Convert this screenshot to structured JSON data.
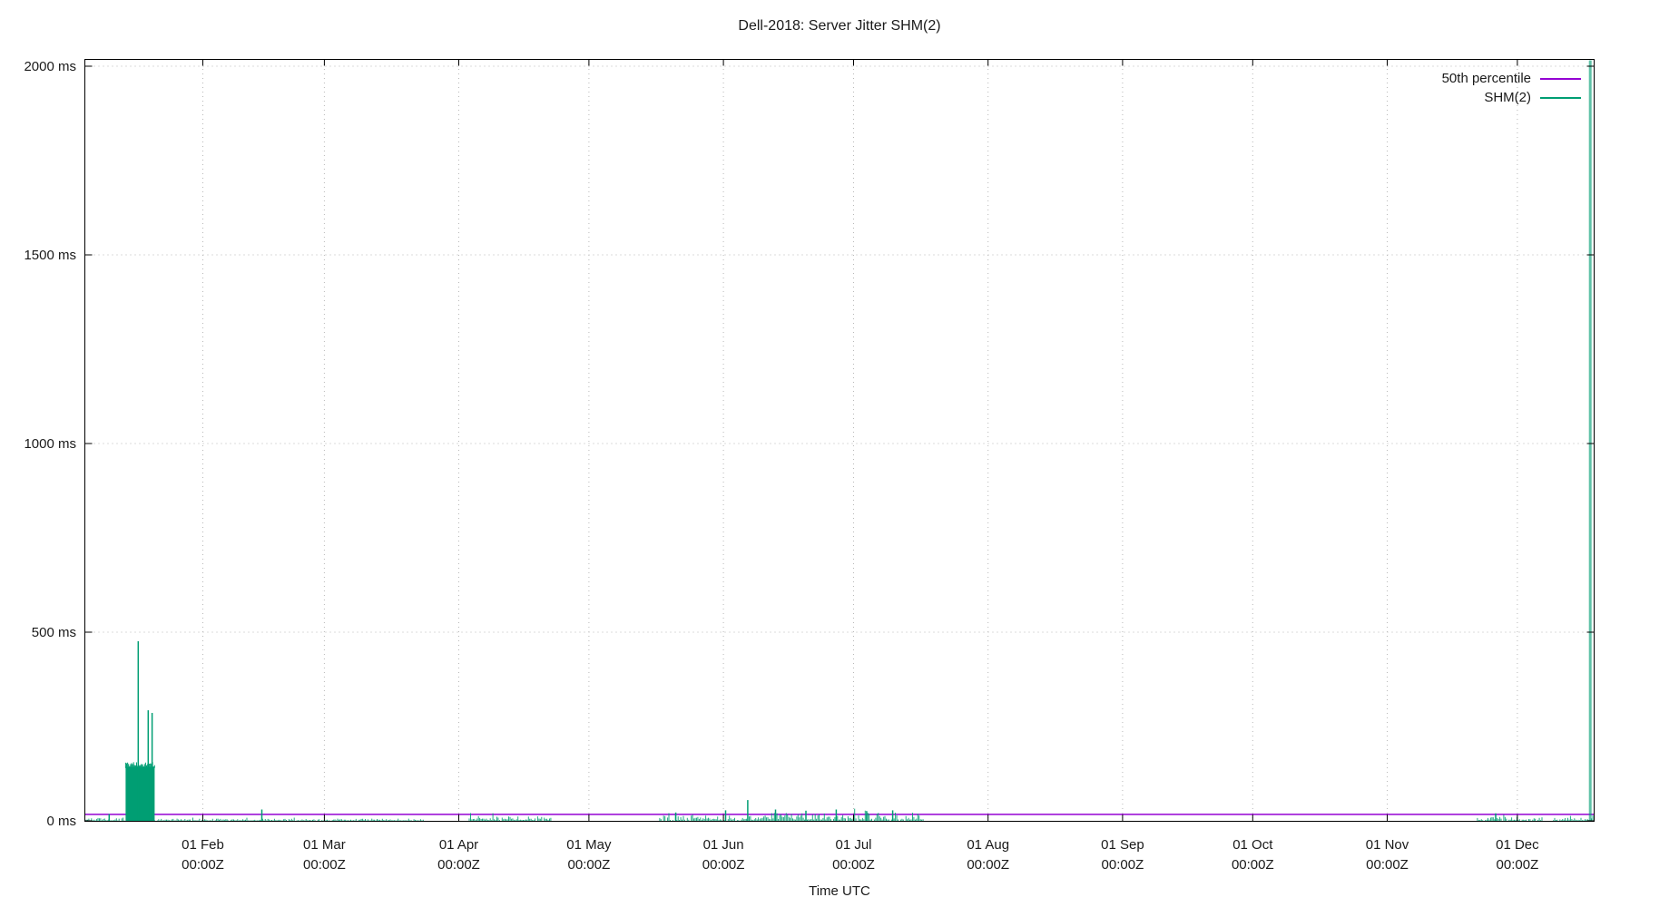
{
  "title": "Dell-2018: Server Jitter SHM(2)",
  "xlabel": "Time UTC",
  "legend": [
    {
      "label": "50th percentile",
      "color": "#9400d3"
    },
    {
      "label": "SHM(2)",
      "color": "#009e73"
    }
  ],
  "colors": {
    "grid": "#b8b8b8",
    "border": "#000000",
    "text": "#1a1a1a",
    "percentile_line": "#9400d3",
    "series_green": "#009e73"
  },
  "chart_data": {
    "type": "line",
    "title": "Dell-2018: Server Jitter SHM(2)",
    "xlabel": "Time UTC",
    "ylabel": "",
    "x_unit": "day-of-year 2018 (0 = 01 Jan 00:00Z)",
    "xlim_days": [
      3.8,
      351.7
    ],
    "ylim_ms": [
      0,
      2000
    ],
    "grid": "dotted at major ticks",
    "legend_position": "top-right inside plot",
    "y_ticks": [
      {
        "ms": 0,
        "label": "0 ms"
      },
      {
        "ms": 500,
        "label": "500 ms"
      },
      {
        "ms": 1000,
        "label": "1000 ms"
      },
      {
        "ms": 1500,
        "label": "1500 ms"
      },
      {
        "ms": 2000,
        "label": "2000 ms"
      }
    ],
    "x_ticks": [
      {
        "day": 31,
        "line1": "01 Feb",
        "line2": "00:00Z"
      },
      {
        "day": 59,
        "line1": "01 Mar",
        "line2": "00:00Z"
      },
      {
        "day": 90,
        "line1": "01 Apr",
        "line2": "00:00Z"
      },
      {
        "day": 120,
        "line1": "01 May",
        "line2": "00:00Z"
      },
      {
        "day": 151,
        "line1": "01 Jun",
        "line2": "00:00Z"
      },
      {
        "day": 181,
        "line1": "01 Jul",
        "line2": "00:00Z"
      },
      {
        "day": 212,
        "line1": "01 Aug",
        "line2": "00:00Z"
      },
      {
        "day": 243,
        "line1": "01 Sep",
        "line2": "00:00Z"
      },
      {
        "day": 273,
        "line1": "01 Oct",
        "line2": "00:00Z"
      },
      {
        "day": 304,
        "line1": "01 Nov",
        "line2": "00:00Z"
      },
      {
        "day": 334,
        "line1": "01 Dec",
        "line2": "00:00Z"
      }
    ],
    "series": [
      {
        "name": "50th percentile",
        "color": "#9400d3",
        "type": "hline",
        "value_ms": 17
      },
      {
        "name": "SHM(2)",
        "color": "#009e73",
        "type": "impulses",
        "noise_bands": [
          {
            "from_day": 3.8,
            "to_day": 13.2,
            "amp_ms": 8
          },
          {
            "from_day": 19.9,
            "to_day": 82.0,
            "amp_ms": 6
          },
          {
            "from_day": 92.4,
            "to_day": 111.5,
            "amp_ms": 14
          },
          {
            "from_day": 136.3,
            "to_day": 160.0,
            "amp_ms": 14
          },
          {
            "from_day": 160.0,
            "to_day": 197.2,
            "amp_ms": 22
          },
          {
            "from_day": 324.8,
            "to_day": 339.8,
            "amp_ms": 11
          },
          {
            "from_day": 342.3,
            "to_day": 351.7,
            "amp_ms": 11
          }
        ],
        "burst_block": {
          "from_day": 13.2,
          "to_day": 19.9,
          "level_ms": 148,
          "jag_ms": 12
        },
        "spikes": [
          {
            "day": 9.4,
            "ms": 18
          },
          {
            "day": 16.1,
            "ms": 476
          },
          {
            "day": 18.4,
            "ms": 293
          },
          {
            "day": 19.3,
            "ms": 286
          },
          {
            "day": 44.6,
            "ms": 30
          },
          {
            "day": 140.0,
            "ms": 22
          },
          {
            "day": 151.5,
            "ms": 28
          },
          {
            "day": 156.6,
            "ms": 55
          },
          {
            "day": 163.0,
            "ms": 30
          },
          {
            "day": 170.0,
            "ms": 27
          },
          {
            "day": 177.0,
            "ms": 30
          },
          {
            "day": 184.0,
            "ms": 26
          },
          {
            "day": 190.0,
            "ms": 28
          },
          {
            "day": 329.0,
            "ms": 20
          },
          {
            "day": 350.8,
            "ms": 2000,
            "clipped": true
          }
        ]
      }
    ]
  }
}
